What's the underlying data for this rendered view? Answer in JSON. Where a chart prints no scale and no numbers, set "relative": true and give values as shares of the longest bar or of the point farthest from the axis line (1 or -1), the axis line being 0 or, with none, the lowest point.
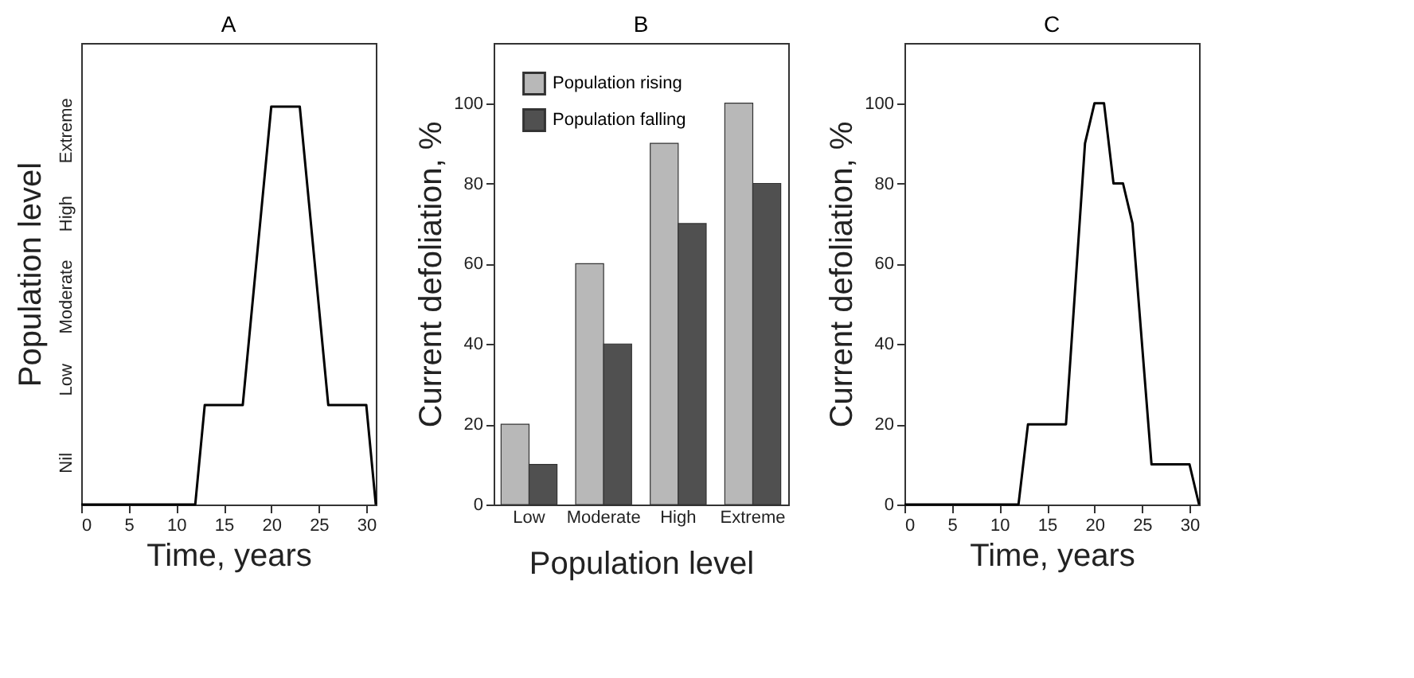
{
  "chart_data": [
    {
      "type": "line",
      "title": "A",
      "xlabel": "Time, years",
      "ylabel": "Population level",
      "xlim": [
        0,
        31
      ],
      "xticks": [
        0,
        5,
        10,
        15,
        20,
        25,
        30
      ],
      "relative": true,
      "annotations": [
        "Nil",
        "Low",
        "Moderate",
        "High",
        "Extreme"
      ],
      "grid": false,
      "legend": false,
      "series": [
        {
          "color": "#000000",
          "x": [
            0,
            12,
            13,
            17,
            20,
            23,
            26,
            30,
            31
          ],
          "values": [
            0,
            0,
            0.25,
            0.25,
            1,
            1,
            0.25,
            0.25,
            0
          ]
        }
      ]
    },
    {
      "type": "bar",
      "title": "B",
      "xlabel": "Population level",
      "ylabel": "Current defoliation, %",
      "categories": [
        "Low",
        "Moderate",
        "High",
        "Extreme"
      ],
      "ylim": [
        0,
        115
      ],
      "yticks": [
        0,
        20,
        40,
        60,
        80,
        100
      ],
      "grid": false,
      "legend": "top left",
      "series": [
        {
          "name": "Population rising",
          "color": "#b8b8b8",
          "values": [
            20,
            60,
            90,
            100
          ]
        },
        {
          "name": "Population falling",
          "color": "#505050",
          "values": [
            10,
            40,
            70,
            80
          ]
        }
      ]
    },
    {
      "type": "line",
      "title": "C",
      "xlabel": "Time, years",
      "ylabel": "Current defoliation, %",
      "xlim": [
        0,
        31
      ],
      "xticks": [
        0,
        5,
        10,
        15,
        20,
        25,
        30
      ],
      "ylim": [
        0,
        115
      ],
      "yticks": [
        0,
        20,
        40,
        60,
        80,
        100
      ],
      "grid": false,
      "legend": false,
      "series": [
        {
          "color": "#000000",
          "x": [
            0,
            12,
            13,
            17,
            19,
            20,
            21,
            22,
            23,
            24,
            26,
            30,
            31
          ],
          "values": [
            0,
            0,
            20,
            20,
            90,
            100,
            100,
            80,
            80,
            70,
            10,
            10,
            0
          ]
        }
      ]
    }
  ]
}
